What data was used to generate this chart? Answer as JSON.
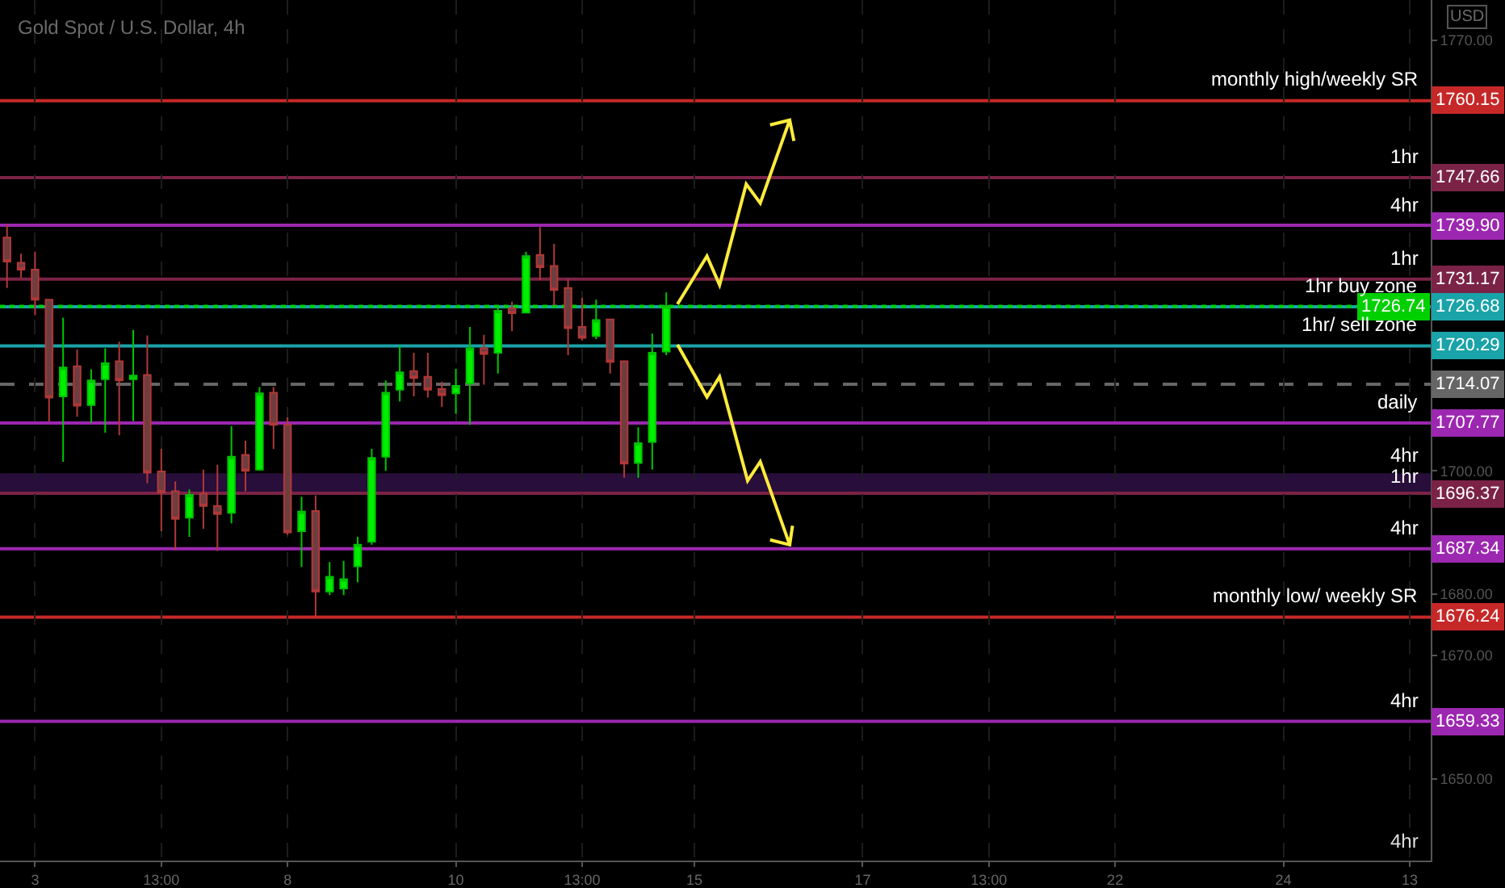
{
  "chart_data": {
    "type": "candlestick",
    "title": "Gold Spot / U.S. Dollar, 4h",
    "ylabel": "USD",
    "categories": [
      null,
      null,
      "3",
      null,
      null,
      null,
      null,
      null,
      null,
      null,
      null,
      "13:00",
      null,
      null,
      null,
      null,
      null,
      null,
      null,
      null,
      "8",
      null,
      null,
      null,
      null,
      null,
      null,
      null,
      null,
      null,
      null,
      null,
      "10",
      null,
      null,
      null,
      null,
      null,
      null,
      null,
      null,
      "13:00",
      null,
      null,
      null,
      null,
      null,
      null,
      null,
      "15",
      null,
      null,
      null,
      null,
      null,
      null,
      null,
      null,
      null,
      null,
      null,
      "17",
      null,
      null,
      null,
      null,
      null,
      null,
      null,
      null,
      "13:00",
      null,
      null,
      null,
      null,
      null,
      null,
      null,
      null,
      "22",
      null,
      null,
      null,
      null,
      null,
      null,
      null,
      null,
      null,
      null,
      null,
      "24",
      null,
      null,
      null,
      null,
      null,
      null,
      null,
      null,
      "13",
      null
    ],
    "ohlc": [
      [
        1737.9,
        1740.1,
        1729.7,
        1734.0
      ],
      [
        1733.8,
        1735.3,
        1731.4,
        1732.7
      ],
      [
        1732.7,
        1735.6,
        1725.3,
        1727.8
      ],
      [
        1727.8,
        1727.8,
        1708.0,
        1711.9
      ],
      [
        1712.1,
        1724.9,
        1701.5,
        1716.8
      ],
      [
        1717.0,
        1719.7,
        1708.8,
        1710.6
      ],
      [
        1710.7,
        1716.5,
        1707.8,
        1714.7
      ],
      [
        1714.9,
        1719.9,
        1706.2,
        1717.5
      ],
      [
        1717.8,
        1721.0,
        1705.8,
        1714.7
      ],
      [
        1714.9,
        1722.9,
        1708.1,
        1715.5
      ],
      [
        1715.6,
        1722.0,
        1698.0,
        1699.7
      ],
      [
        1699.9,
        1703.6,
        1690.2,
        1696.5
      ],
      [
        1696.7,
        1698.3,
        1687.1,
        1692.2
      ],
      [
        1692.4,
        1697.0,
        1689.3,
        1696.1
      ],
      [
        1696.3,
        1700.2,
        1690.6,
        1694.3
      ],
      [
        1694.3,
        1701.0,
        1687.0,
        1693.0
      ],
      [
        1693.2,
        1707.3,
        1691.5,
        1702.3
      ],
      [
        1702.6,
        1704.9,
        1696.7,
        1700.0
      ],
      [
        1700.2,
        1713.6,
        1700.0,
        1712.6
      ],
      [
        1712.7,
        1713.6,
        1703.6,
        1707.5
      ],
      [
        1707.5,
        1708.7,
        1689.6,
        1690.0
      ],
      [
        1690.2,
        1695.8,
        1684.4,
        1693.4
      ],
      [
        1693.5,
        1696.0,
        1676.3,
        1680.4
      ],
      [
        1680.4,
        1685.2,
        1679.8,
        1682.8
      ],
      [
        1680.9,
        1685.4,
        1679.8,
        1682.4
      ],
      [
        1684.5,
        1689.3,
        1681.9,
        1688.0
      ],
      [
        1688.5,
        1703.6,
        1688.0,
        1702.1
      ],
      [
        1702.3,
        1714.7,
        1700.0,
        1712.7
      ],
      [
        1713.2,
        1720.3,
        1711.3,
        1716.0
      ],
      [
        1716.2,
        1719.2,
        1712.1,
        1715.1
      ],
      [
        1715.3,
        1719.2,
        1711.9,
        1713.2
      ],
      [
        1713.3,
        1714.5,
        1710.4,
        1712.3
      ],
      [
        1712.6,
        1716.6,
        1709.3,
        1713.8
      ],
      [
        1714.2,
        1723.4,
        1707.5,
        1719.9
      ],
      [
        1719.9,
        1722.1,
        1714.0,
        1719.0
      ],
      [
        1719.2,
        1726.6,
        1715.8,
        1726.0
      ],
      [
        1726.4,
        1727.5,
        1722.7,
        1725.6
      ],
      [
        1725.7,
        1735.6,
        1725.7,
        1734.9
      ],
      [
        1735.1,
        1739.6,
        1731.0,
        1733.1
      ],
      [
        1733.3,
        1736.9,
        1726.9,
        1729.4
      ],
      [
        1729.7,
        1731.2,
        1718.8,
        1723.2
      ],
      [
        1723.4,
        1728.1,
        1721.2,
        1721.6
      ],
      [
        1721.9,
        1727.8,
        1721.4,
        1724.5
      ],
      [
        1724.6,
        1724.6,
        1715.8,
        1717.7
      ],
      [
        1717.8,
        1717.8,
        1698.9,
        1701.2
      ],
      [
        1701.3,
        1707.1,
        1698.9,
        1704.5
      ],
      [
        1704.7,
        1722.3,
        1700.2,
        1719.2
      ],
      [
        1719.4,
        1729.0,
        1718.8,
        1726.74
      ],
      null,
      null,
      null,
      null,
      null,
      null,
      null,
      null,
      null,
      null,
      null,
      null,
      null,
      null,
      null,
      null,
      null,
      null,
      null,
      null,
      null,
      null,
      null,
      null,
      null,
      null,
      null,
      null,
      null,
      null,
      null,
      null,
      null,
      null,
      null,
      null,
      null,
      null,
      null,
      null,
      null,
      null,
      null,
      null,
      null,
      null,
      null,
      null,
      null,
      null,
      null,
      null,
      null,
      null
    ],
    "ylim": [
      1636.7,
      1776.5
    ],
    "yticks": [
      {
        "value": 1650,
        "label": "1650.00"
      },
      {
        "value": 1670,
        "label": "1670.00"
      },
      {
        "value": 1680,
        "label": "1680.00"
      },
      {
        "value": 1700,
        "label": "1700.00"
      },
      {
        "value": 1770,
        "label": "1770.00"
      }
    ],
    "grid": "x",
    "ref_lines": [
      {
        "axis": "y",
        "value": 1760.15,
        "label": "1760.15",
        "color": "#c62828"
      },
      {
        "axis": "y",
        "value": 1747.66,
        "label": "1747.66",
        "color": "#7b2346"
      },
      {
        "axis": "y",
        "value": 1739.9,
        "label": "1739.90",
        "color": "#9c27b0"
      },
      {
        "axis": "y",
        "value": 1731.17,
        "label": "1731.17",
        "color": "#7b2346"
      },
      {
        "axis": "y",
        "value": 1726.68,
        "label": "1726.68",
        "color": "#1aa3a8"
      },
      {
        "axis": "y",
        "value": 1720.29,
        "label": "1720.29",
        "color": "#1aa3a8"
      },
      {
        "axis": "y",
        "value": 1726.74,
        "label": "1726.74",
        "color": "#00d000",
        "line_style": "dotted"
      },
      {
        "axis": "y",
        "value": 1714.07,
        "label": "1714.07",
        "color": "#666666",
        "line_style": "dashed"
      },
      {
        "axis": "y",
        "value": 1707.77,
        "label": "1707.77",
        "color": "#9c27b0"
      },
      {
        "axis": "y",
        "value": 1696.37,
        "label": "1696.37",
        "color": "#7b2346"
      },
      {
        "axis": "y",
        "value": 1687.34,
        "label": "1687.34",
        "color": "#9c27b0"
      },
      {
        "axis": "y",
        "value": 1676.24,
        "label": "1676.24",
        "color": "#c62828"
      },
      {
        "axis": "y",
        "value": 1659.33,
        "label": "1659.33",
        "color": "#9c27b0"
      }
    ],
    "bands": [
      {
        "axis": "y",
        "from": 1696.37,
        "to": 1699.5,
        "label": "4hr",
        "color": "#4a1a6b"
      }
    ],
    "annotations": [
      {
        "text": "monthly high/weekly SR",
        "y": 1760.15
      },
      {
        "text": "1hr",
        "y": 1747.66
      },
      {
        "text": "4hr",
        "y": 1739.9
      },
      {
        "text": "1hr",
        "y": 1731.17
      },
      {
        "text": "1hr buy zone",
        "y": 1726.68
      },
      {
        "text": "1hr/ sell zone",
        "y": 1720.29
      },
      {
        "text": "daily",
        "y": 1707.77
      },
      {
        "text": "1hr",
        "y": 1696.37
      },
      {
        "text": "4hr",
        "y": 1687.34
      },
      {
        "text": "monthly low/ weekly SR",
        "y": 1676.24
      },
      {
        "text": "4hr",
        "y": 1659.33
      },
      "4hr"
    ]
  }
}
